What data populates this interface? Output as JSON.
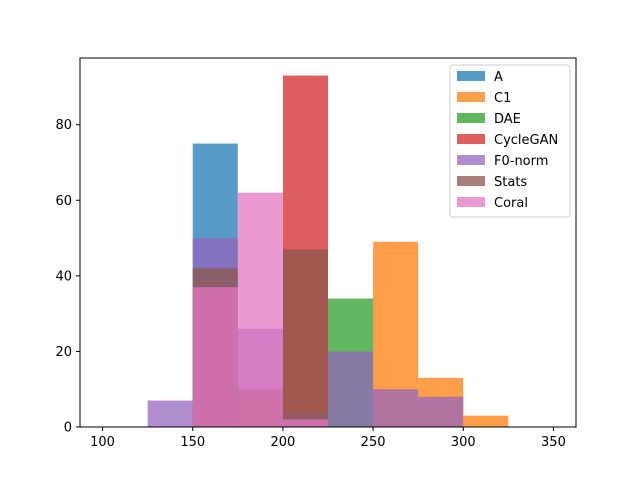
{
  "chart_data": {
    "type": "histogram",
    "title": "",
    "xlabel": "",
    "ylabel": "",
    "xlim": [
      87.5,
      362.5
    ],
    "ylim": [
      0,
      97.65
    ],
    "bin_edges": [
      125,
      150,
      175,
      200,
      225,
      250,
      275,
      300,
      325
    ],
    "xticks": [
      100,
      150,
      200,
      250,
      300,
      350
    ],
    "yticks": [
      0,
      20,
      40,
      60,
      80
    ],
    "grid": false,
    "legend_position": "upper right",
    "alpha": 0.75,
    "series": [
      {
        "name": "A",
        "color": "#1f77b4",
        "values": [
          0,
          75,
          0,
          0,
          0,
          0,
          0,
          0
        ]
      },
      {
        "name": "C1",
        "color": "#ff7f0e",
        "values": [
          0,
          0,
          0,
          0,
          0,
          49,
          13,
          3
        ]
      },
      {
        "name": "DAE",
        "color": "#2ca02c",
        "values": [
          0,
          0,
          0,
          0,
          34,
          0,
          0,
          0
        ]
      },
      {
        "name": "CycleGAN",
        "color": "#d62728",
        "values": [
          0,
          0,
          0,
          93,
          0,
          0,
          0,
          0
        ]
      },
      {
        "name": "F0-norm",
        "color": "#9467bd",
        "values": [
          7,
          50,
          26,
          4,
          20,
          10,
          8,
          0
        ]
      },
      {
        "name": "Stats",
        "color": "#8c564b",
        "values": [
          0,
          42,
          10,
          47,
          0,
          0,
          0,
          0
        ]
      },
      {
        "name": "Coral",
        "color": "#e377c2",
        "values": [
          0,
          37,
          62,
          2,
          0,
          0,
          0,
          0
        ]
      }
    ]
  }
}
